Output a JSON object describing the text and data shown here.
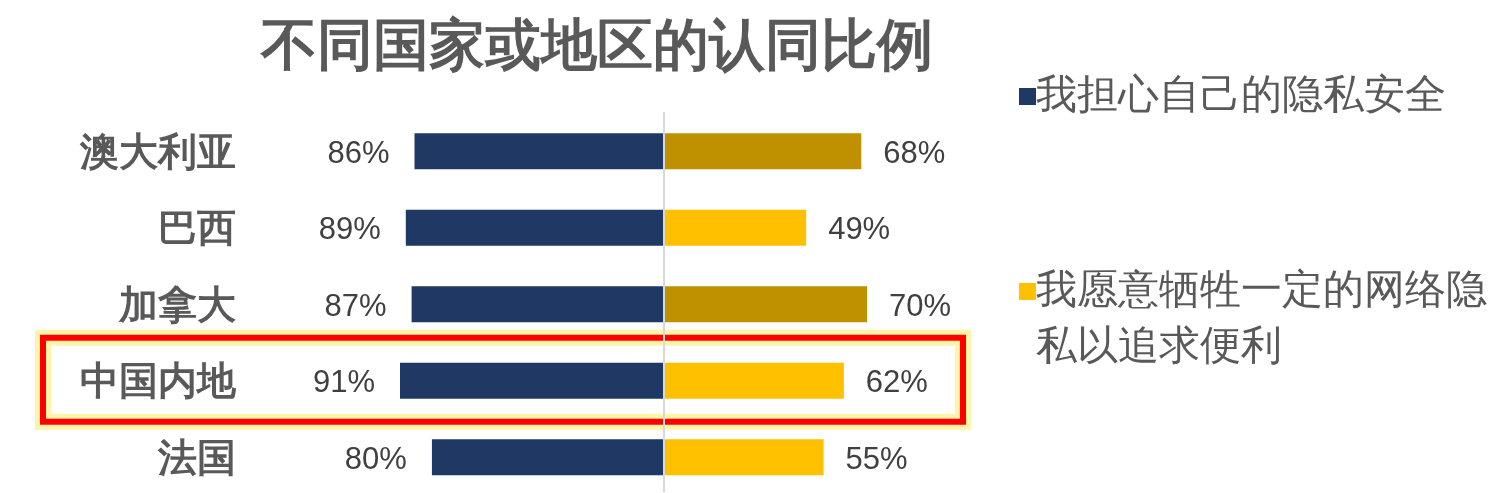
{
  "chart_data": [
    {
      "type": "bar",
      "orientation": "horizontal",
      "title": "不同国家或地区的认同比例",
      "categories": [
        "澳大利亚",
        "巴西",
        "加拿大",
        "中国内地",
        "法国"
      ],
      "series": [
        {
          "name": "我担心自己的隐私安全",
          "color": "#203864",
          "values": [
            86,
            89,
            87,
            91,
            80
          ],
          "value_labels": [
            "86%",
            "89%",
            "87%",
            "91%",
            "80%"
          ]
        }
      ],
      "legend": "right"
    },
    {
      "type": "bar",
      "orientation": "horizontal",
      "categories": [
        null,
        null,
        null,
        null,
        null
      ],
      "series": [
        {
          "name": "我愿意牺牲一定的网络隐私以追求便利",
          "color": "#ffc000",
          "colors": [
            "#bf9000",
            "#ffc000",
            "#bf9000",
            "#ffc000",
            "#ffc000"
          ],
          "values": [
            68,
            49,
            70,
            62,
            55
          ],
          "value_labels": [
            "68%",
            "49%",
            "70%",
            "62%",
            "55%"
          ]
        }
      ],
      "legend": "right"
    }
  ]
}
